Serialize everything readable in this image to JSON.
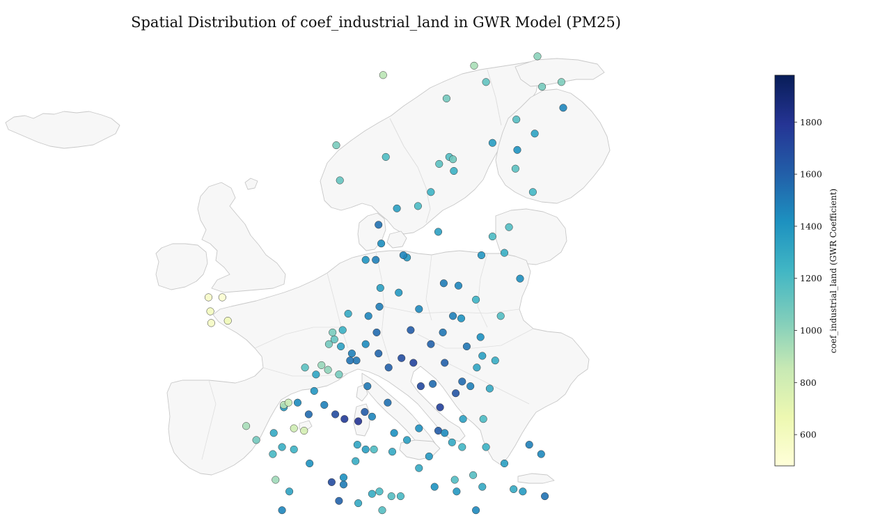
{
  "title": "Spatial Distribution of coef_industrial_land in GWR Model (PM25)",
  "colorbar": {
    "label": "coef_industrial_land (GWR Coefficient)",
    "range": [
      480,
      1980
    ],
    "ticks": [
      600,
      800,
      1000,
      1200,
      1400,
      1600,
      1800
    ],
    "colormap": "YlGnBu",
    "stops": [
      "#ffffd9",
      "#edf8b1",
      "#c7e9b4",
      "#7fcdbb",
      "#41b6c4",
      "#1d91c0",
      "#225ea8",
      "#253494",
      "#081d58"
    ]
  },
  "map": {
    "land_color": "#f7f7f7",
    "border_color": "#c8c8c8",
    "point_edge_color": "#333333"
  },
  "chart_data": {
    "type": "scatter",
    "title": "Spatial Distribution of coef_industrial_land in GWR Model (PM25)",
    "colorbar_label": "coef_industrial_land (GWR Coefficient)",
    "value_range": [
      480,
      1980
    ],
    "points_lonlat_value": [
      [
        -8.6,
        53.9,
        560
      ],
      [
        -7.1,
        53.9,
        520
      ],
      [
        -8.4,
        53.3,
        600
      ],
      [
        -8.3,
        52.8,
        580
      ],
      [
        -6.5,
        52.9,
        640
      ],
      [
        -8.8,
        42.8,
        1010
      ],
      [
        -8.7,
        42.3,
        1050
      ],
      [
        -8.3,
        41.7,
        1020
      ],
      [
        -8.6,
        41.2,
        1030
      ],
      [
        -8.7,
        40.6,
        1000
      ],
      [
        -8.5,
        39.7,
        990
      ],
      [
        -8.8,
        38.7,
        1040
      ],
      [
        -8.0,
        37.9,
        1100
      ],
      [
        -8.2,
        37.2,
        1120
      ],
      [
        -7.3,
        38.6,
        1060
      ],
      [
        -6.4,
        40.3,
        1020
      ],
      [
        -5.8,
        40.9,
        940
      ],
      [
        -5.4,
        41.5,
        880
      ],
      [
        -5.5,
        42.6,
        960
      ],
      [
        -4.7,
        42.0,
        990
      ],
      [
        -4.1,
        43.1,
        1150
      ],
      [
        -3.0,
        43.1,
        1620
      ],
      [
        -2.6,
        42.8,
        1580
      ],
      [
        -1.6,
        42.8,
        1450
      ],
      [
        -1.9,
        42.2,
        1350
      ],
      [
        -3.7,
        40.4,
        1120
      ],
      [
        -3.2,
        40.0,
        990
      ],
      [
        -2.1,
        40.1,
        1070
      ],
      [
        -1.4,
        39.5,
        1200
      ],
      [
        -0.4,
        39.4,
        1330
      ],
      [
        -0.5,
        38.3,
        1380
      ],
      [
        -1.1,
        37.9,
        1420
      ],
      [
        -2.4,
        37.3,
        1360
      ],
      [
        -3.6,
        37.2,
        1280
      ],
      [
        -4.4,
        37.9,
        1190
      ],
      [
        -4.8,
        36.7,
        1250
      ],
      [
        -6.0,
        37.4,
        1200
      ],
      [
        -6.3,
        36.6,
        1150
      ],
      [
        0.3,
        41.6,
        1620
      ],
      [
        1.0,
        41.2,
        1710
      ],
      [
        2.2,
        41.4,
        1680
      ],
      [
        1.9,
        42.1,
        1590
      ],
      [
        2.8,
        41.9,
        1560
      ],
      [
        -0.9,
        41.6,
        1510
      ],
      [
        -1.6,
        47.2,
        1210
      ],
      [
        -0.6,
        47.5,
        1270
      ],
      [
        0.7,
        47.4,
        1250
      ],
      [
        -1.5,
        48.1,
        1300
      ],
      [
        -0.4,
        49.2,
        1380
      ],
      [
        1.1,
        49.4,
        1440
      ],
      [
        2.3,
        48.9,
        1560
      ],
      [
        2.9,
        49.9,
        1390
      ],
      [
        3.1,
        50.6,
        1320
      ],
      [
        1.9,
        50.9,
        1150
      ],
      [
        4.0,
        49.3,
        1480
      ],
      [
        5.2,
        48.9,
        1690
      ],
      [
        6.2,
        48.7,
        1760
      ],
      [
        7.7,
        48.6,
        1800
      ],
      [
        4.8,
        46.0,
        1690
      ],
      [
        5.6,
        45.2,
        1590
      ],
      [
        6.1,
        45.9,
        1500
      ],
      [
        3.9,
        43.6,
        1510
      ],
      [
        5.4,
        43.3,
        1530
      ],
      [
        7.3,
        43.7,
        1640
      ],
      [
        1.4,
        43.6,
        1450
      ],
      [
        -0.6,
        44.8,
        1460
      ],
      [
        0.2,
        45.6,
        1330
      ],
      [
        2.4,
        46.8,
        1410
      ],
      [
        -4.5,
        48.4,
        940
      ],
      [
        -3.4,
        47.8,
        1080
      ],
      [
        4.4,
        50.8,
        1000
      ],
      [
        5.6,
        50.6,
        1070
      ],
      [
        3.7,
        51.0,
        980
      ],
      [
        4.9,
        52.4,
        1060
      ],
      [
        5.1,
        52.1,
        1120
      ],
      [
        6.0,
        52.5,
        1260
      ],
      [
        6.6,
        53.2,
        1300
      ],
      [
        5.8,
        51.8,
        1340
      ],
      [
        4.5,
        51.9,
        1080
      ],
      [
        7.0,
        51.5,
        1480
      ],
      [
        7.5,
        51.2,
        1520
      ],
      [
        6.8,
        51.2,
        1530
      ],
      [
        8.5,
        51.9,
        1440
      ],
      [
        9.7,
        52.4,
        1560
      ],
      [
        10.0,
        53.5,
        1490
      ],
      [
        13.4,
        52.5,
        1620
      ],
      [
        12.4,
        51.3,
        1680
      ],
      [
        13.7,
        51.1,
        1730
      ],
      [
        11.6,
        48.1,
        1420
      ],
      [
        10.9,
        49.4,
        1540
      ],
      [
        9.2,
        48.8,
        1460
      ],
      [
        8.7,
        50.1,
        1510
      ],
      [
        8.4,
        49.0,
        1620
      ],
      [
        11.0,
        50.9,
        1600
      ],
      [
        9.9,
        51.5,
        1580
      ],
      [
        14.3,
        53.4,
        1450
      ],
      [
        12.1,
        54.1,
        1380
      ],
      [
        10.1,
        54.3,
        1350
      ],
      [
        8.8,
        53.1,
        1460
      ],
      [
        7.6,
        47.6,
        1320
      ],
      [
        8.5,
        47.4,
        1350
      ],
      [
        7.4,
        46.9,
        1280
      ],
      [
        9.4,
        47.4,
        1190
      ],
      [
        6.1,
        46.2,
        1420
      ],
      [
        11.4,
        47.3,
        1300
      ],
      [
        13.0,
        47.8,
        1350
      ],
      [
        14.3,
        48.3,
        1420
      ],
      [
        16.4,
        48.2,
        1620
      ],
      [
        15.4,
        47.1,
        1380
      ],
      [
        14.3,
        46.6,
        1290
      ],
      [
        14.5,
        50.1,
        1700
      ],
      [
        16.6,
        49.2,
        1740
      ],
      [
        18.3,
        49.8,
        1650
      ],
      [
        15.8,
        50.2,
        1560
      ],
      [
        17.1,
        51.1,
        1600
      ],
      [
        19.0,
        50.3,
        1560
      ],
      [
        19.9,
        50.1,
        1480
      ],
      [
        21.0,
        52.2,
        1420
      ],
      [
        19.5,
        51.8,
        1520
      ],
      [
        16.9,
        52.4,
        1520
      ],
      [
        18.6,
        54.4,
        1460
      ],
      [
        17.0,
        54.5,
        1500
      ],
      [
        22.6,
        51.2,
        1280
      ],
      [
        23.2,
        53.1,
        1180
      ],
      [
        20.5,
        53.8,
        1250
      ],
      [
        22.0,
        50.0,
        1300
      ],
      [
        17.1,
        48.1,
        1440
      ],
      [
        19.1,
        48.7,
        1340
      ],
      [
        21.3,
        48.7,
        1200
      ],
      [
        19.0,
        47.5,
        1230
      ],
      [
        20.2,
        46.3,
        1170
      ],
      [
        17.9,
        47.7,
        1300
      ],
      [
        21.6,
        47.5,
        1250
      ],
      [
        18.2,
        46.1,
        1180
      ],
      [
        9.2,
        45.5,
        1280
      ],
      [
        7.7,
        45.1,
        1300
      ],
      [
        10.0,
        45.6,
        1200
      ],
      [
        11.3,
        45.4,
        1170
      ],
      [
        12.3,
        45.4,
        1210
      ],
      [
        11.3,
        44.5,
        1240
      ],
      [
        10.3,
        44.8,
        1170
      ],
      [
        8.9,
        44.4,
        1260
      ],
      [
        11.2,
        43.8,
        1200
      ],
      [
        10.4,
        43.7,
        1180
      ],
      [
        12.5,
        41.9,
        1320
      ],
      [
        12.6,
        43.1,
        1230
      ],
      [
        13.5,
        43.6,
        1260
      ],
      [
        14.2,
        42.4,
        1280
      ],
      [
        14.3,
        40.9,
        1390
      ],
      [
        16.9,
        41.1,
        1430
      ],
      [
        15.6,
        40.6,
        1380
      ],
      [
        17.2,
        40.5,
        1390
      ],
      [
        16.3,
        39.3,
        1350
      ],
      [
        15.6,
        38.1,
        1420
      ],
      [
        13.4,
        38.1,
        1390
      ],
      [
        14.5,
        37.5,
        1310
      ],
      [
        15.1,
        37.5,
        1420
      ],
      [
        9.1,
        39.2,
        1310
      ],
      [
        8.6,
        40.7,
        1280
      ],
      [
        9.5,
        40.9,
        1260
      ],
      [
        16.0,
        45.8,
        1410
      ],
      [
        18.4,
        45.6,
        1380
      ],
      [
        15.2,
        44.1,
        1290
      ],
      [
        16.4,
        43.5,
        1240
      ],
      [
        18.4,
        43.9,
        1360
      ],
      [
        20.5,
        44.8,
        1450
      ],
      [
        21.9,
        43.3,
        1400
      ],
      [
        19.3,
        42.4,
        1290
      ],
      [
        21.4,
        42.0,
        1250
      ],
      [
        23.3,
        42.7,
        1370
      ],
      [
        25.6,
        42.1,
        1460
      ],
      [
        27.9,
        43.2,
        1480
      ],
      [
        24.7,
        42.2,
        1420
      ],
      [
        22.9,
        43.6,
        1330
      ],
      [
        26.1,
        44.4,
        1580
      ],
      [
        27.9,
        44.2,
        1500
      ],
      [
        28.0,
        45.4,
        1530
      ],
      [
        23.6,
        46.8,
        1350
      ],
      [
        24.6,
        45.7,
        1290
      ],
      [
        21.2,
        45.8,
        1300
      ],
      [
        25.6,
        45.6,
        1370
      ],
      [
        27.6,
        47.2,
        1450
      ],
      [
        26.3,
        47.6,
        1480
      ],
      [
        23.9,
        44.3,
        1330
      ],
      [
        22.9,
        40.6,
        1250
      ],
      [
        23.7,
        38.0,
        1230
      ],
      [
        21.7,
        38.2,
        1200
      ],
      [
        25.1,
        35.3,
        1260
      ],
      [
        22.4,
        39.6,
        1170
      ],
      [
        20.9,
        39.7,
        1210
      ],
      [
        26.0,
        38.6,
        1300
      ],
      [
        24.3,
        40.9,
        1280
      ],
      [
        24.9,
        37.4,
        1250
      ],
      [
        19.8,
        41.3,
        1280
      ],
      [
        18.9,
        53.0,
        1410
      ],
      [
        18.0,
        53.1,
        1480
      ],
      [
        15.6,
        51.9,
        1590
      ],
      [
        21.2,
        51.4,
        1350
      ],
      [
        20.6,
        50.9,
        1320
      ],
      [
        24.1,
        56.9,
        1180
      ],
      [
        23.6,
        55.8,
        1270
      ],
      [
        25.3,
        54.7,
        1430
      ],
      [
        21.1,
        55.7,
        1390
      ],
      [
        22.3,
        56.5,
        1200
      ],
      [
        24.8,
        59.4,
        1150
      ],
      [
        26.7,
        58.4,
        1220
      ],
      [
        25.0,
        60.2,
        1410
      ],
      [
        22.3,
        60.5,
        1360
      ],
      [
        24.9,
        61.5,
        1170
      ],
      [
        27.7,
        62.9,
        1070
      ],
      [
        25.5,
        65.0,
        1100
      ],
      [
        29.8,
        63.1,
        1050
      ],
      [
        27.2,
        64.2,
        1010
      ],
      [
        21.6,
        63.1,
        1130
      ],
      [
        25.8,
        67.8,
        900
      ],
      [
        30.0,
        62.0,
        1460
      ],
      [
        26.9,
        60.9,
        1330
      ],
      [
        18.1,
        59.3,
        1260
      ],
      [
        17.6,
        59.9,
        1180
      ],
      [
        16.5,
        59.6,
        1150
      ],
      [
        15.6,
        58.4,
        1250
      ],
      [
        13.0,
        55.6,
        1380
      ],
      [
        11.9,
        57.7,
        1350
      ],
      [
        14.2,
        57.8,
        1200
      ],
      [
        16.4,
        56.7,
        1340
      ],
      [
        20.3,
        63.8,
        930
      ],
      [
        17.3,
        62.4,
        1080
      ],
      [
        10.7,
        59.9,
        1190
      ],
      [
        5.3,
        60.4,
        1060
      ],
      [
        5.7,
        58.9,
        1120
      ],
      [
        10.4,
        63.4,
        890
      ],
      [
        18.0,
        59.8,
        1090
      ],
      [
        12.6,
        55.7,
        1460
      ],
      [
        9.9,
        57.0,
        1540
      ],
      [
        10.2,
        56.2,
        1430
      ],
      [
        9.6,
        55.5,
        1480
      ],
      [
        8.5,
        55.5,
        1400
      ],
      [
        -0.4,
        49.3,
        900
      ],
      [
        -1.3,
        46.1,
        960
      ],
      [
        0.1,
        49.4,
        850
      ],
      [
        0.7,
        48.3,
        820
      ],
      [
        1.8,
        48.2,
        790
      ]
    ]
  }
}
